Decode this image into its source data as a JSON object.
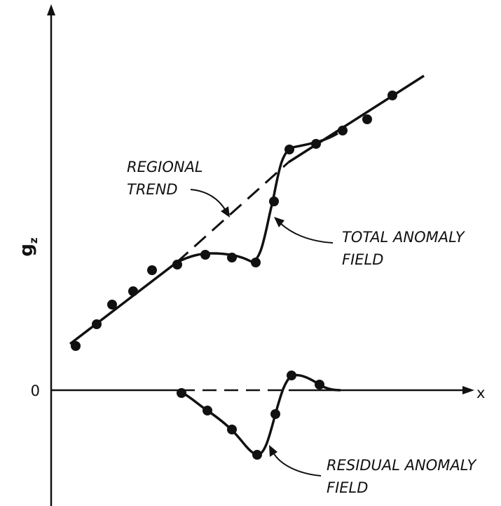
{
  "axes": {
    "y_label": "g",
    "y_label_subscript": "z",
    "x_label": "x",
    "zero_label": "0"
  },
  "annotations": {
    "regional_trend": [
      "REGIONAL",
      "TREND"
    ],
    "total_anomaly": [
      "TOTAL ANOMALY",
      "FIELD"
    ],
    "residual_anomaly": [
      "RESIDUAL ANOMALY",
      "FIELD"
    ]
  },
  "colors": {
    "ink": "#111111",
    "background": "#ffffff"
  }
}
